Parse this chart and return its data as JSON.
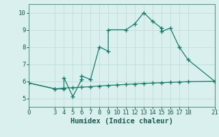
{
  "line1_x": [
    0,
    3,
    4,
    4,
    5,
    6,
    6,
    7,
    8,
    9,
    9,
    11,
    12,
    13,
    14,
    15,
    15,
    16,
    17,
    18,
    21
  ],
  "line1_y": [
    5.9,
    5.55,
    5.55,
    6.2,
    5.1,
    6.1,
    6.3,
    6.1,
    8.0,
    7.75,
    9.0,
    9.0,
    9.35,
    10.0,
    9.5,
    9.1,
    8.9,
    9.1,
    8.0,
    7.25,
    6.0
  ],
  "line2_x": [
    0,
    3,
    4,
    5,
    6,
    7,
    8,
    9,
    10,
    11,
    12,
    13,
    14,
    15,
    16,
    17,
    18,
    21
  ],
  "line2_y": [
    5.9,
    5.55,
    5.6,
    5.62,
    5.65,
    5.68,
    5.72,
    5.75,
    5.78,
    5.81,
    5.84,
    5.87,
    5.89,
    5.91,
    5.93,
    5.95,
    5.97,
    6.0
  ],
  "line_color": "#1a7a6a",
  "bg_color": "#d9f0ee",
  "grid_color": "#c0ddd9",
  "xlabel": "Humidex (Indice chaleur)",
  "xlim": [
    0,
    21
  ],
  "ylim": [
    4.5,
    10.5
  ],
  "yticks": [
    5,
    6,
    7,
    8,
    9,
    10
  ],
  "xticks": [
    0,
    3,
    4,
    5,
    6,
    7,
    8,
    9,
    10,
    11,
    12,
    13,
    14,
    15,
    16,
    17,
    18,
    21
  ],
  "marker": "+",
  "markersize": 4,
  "linewidth": 0.9,
  "tick_fontsize": 6.5,
  "xlabel_fontsize": 7.5
}
